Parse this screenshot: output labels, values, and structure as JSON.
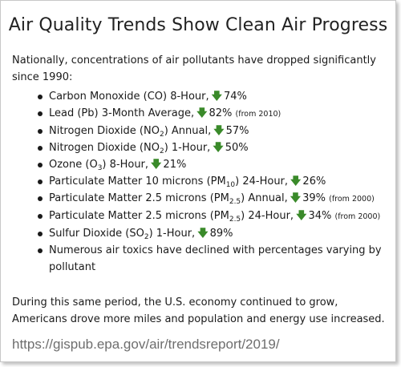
{
  "title": "Air Quality Trends Show Clean Air Progress",
  "intro": "Nationally, concentrations of air pollutants have dropped significantly since 1990:",
  "items": [
    {
      "pre": "Carbon Monoxide (CO) 8-Hour,",
      "sub": "",
      "post": "",
      "value": "74%",
      "note": ""
    },
    {
      "pre": "Lead (Pb) 3-Month Average,",
      "sub": "",
      "post": "",
      "value": "82%",
      "note": "(from 2010)"
    },
    {
      "pre": "Nitrogen Dioxide (NO",
      "sub": "2",
      "post": ") Annual,",
      "value": "57%",
      "note": ""
    },
    {
      "pre": "Nitrogen Dioxide (NO",
      "sub": "2",
      "post": ") 1-Hour,",
      "value": "50%",
      "note": ""
    },
    {
      "pre": "Ozone (O",
      "sub": "3",
      "post": ") 8-Hour,",
      "value": "21%",
      "note": ""
    },
    {
      "pre": "Particulate Matter 10 microns (PM",
      "sub": "10",
      "post": ") 24-Hour,",
      "value": "26%",
      "note": ""
    },
    {
      "pre": "Particulate Matter 2.5 microns (PM",
      "sub": "2.5",
      "post": ") Annual,",
      "value": "39%",
      "note": "(from 2000)"
    },
    {
      "pre": "Particulate Matter 2.5 microns (PM",
      "sub": "2.5",
      "post": ") 24-Hour,",
      "value": "34%",
      "note": "(from 2000)"
    },
    {
      "pre": "Sulfur Dioxide (SO",
      "sub": "2",
      "post": ") 1-Hour,",
      "value": "89%",
      "note": ""
    },
    {
      "pre": "Numerous air toxics have declined with percentages varying by pollutant",
      "sub": "",
      "post": "",
      "value": "",
      "note": ""
    }
  ],
  "outro": "During this same period, the U.S. economy continued to grow, Americans drove more miles and population and energy use increased.",
  "url": "https://gispub.epa.gov/air/trendsreport/2019/",
  "icons": {
    "decrease": "down-arrow-icon"
  },
  "colors": {
    "arrow": "#3a8a2a",
    "url": "#6e6e6e"
  }
}
